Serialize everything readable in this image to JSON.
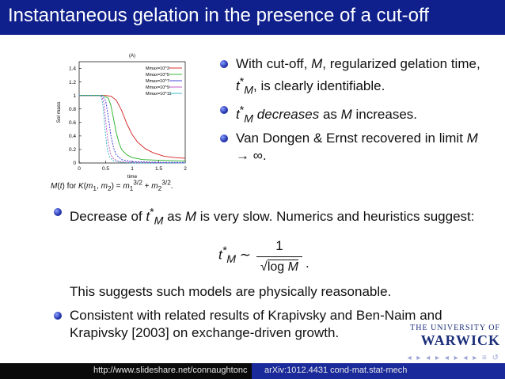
{
  "slide": {
    "title": "Instantaneous gelation in the presence of a cut-off"
  },
  "figure": {
    "panel_label": "(A)",
    "caption_prefix": "M(t) for K(m",
    "caption": "M(t) for K(m1, m2) = m1^(3/2) + m2^(3/2)."
  },
  "bullets_right": [
    "With cut-off, M, regularized gelation time, t*M, is clearly identifiable.",
    "t*M decreases as M increases.",
    "Van Dongen & Ernst recovered in limit M → ∞."
  ],
  "lower": {
    "bullet1": "Decrease of t*M as M is very slow. Numerics and heuristics suggest:",
    "formula_lhs": "t*M ~",
    "formula_num": "1",
    "formula_den": "√log M",
    "plain": "This suggests such models are physically reasonable.",
    "bullet2": "Consistent with related results of Krapivsky and Ben-Naim and Krapivsky [2003] on exchange-driven growth."
  },
  "logo": {
    "line1": "THE UNIVERSITY OF",
    "line2": "WARWICK"
  },
  "footer": {
    "left": "http://www.slideshare.net/connaughtonc",
    "right": "arXiv:1012.4431 cond-mat.stat-mech"
  },
  "chart_data": {
    "type": "line",
    "title": "(A)",
    "xlabel": "time",
    "ylabel": "Sol mass",
    "xlim": [
      0,
      2
    ],
    "ylim": [
      0,
      1.5
    ],
    "xticks": [
      "0",
      "0.5",
      "1",
      "1.5",
      "2"
    ],
    "yticks": [
      "0",
      "0.2",
      "0.4",
      "0.6",
      "0.8",
      "1",
      "1.2",
      "1.4"
    ],
    "legend_position": "top-right",
    "series": [
      {
        "name": "Mmax=10^3",
        "color": "#d62020",
        "x": [
          0,
          0.5,
          0.6,
          0.7,
          0.8,
          0.9,
          1.0,
          1.1,
          1.25,
          1.4,
          1.6,
          1.8,
          2.0
        ],
        "y": [
          1,
          1,
          0.99,
          0.93,
          0.78,
          0.58,
          0.42,
          0.31,
          0.21,
          0.15,
          0.1,
          0.08,
          0.07
        ]
      },
      {
        "name": "Mmax=10^5",
        "color": "#23b023",
        "x": [
          0,
          0.45,
          0.55,
          0.6,
          0.65,
          0.7,
          0.75,
          0.8,
          0.9,
          1.0,
          1.2,
          1.5,
          2.0
        ],
        "y": [
          1,
          1,
          0.96,
          0.85,
          0.65,
          0.45,
          0.3,
          0.2,
          0.12,
          0.08,
          0.05,
          0.04,
          0.03
        ]
      },
      {
        "name": "Mmax=10^7",
        "color": "#2f2fd8",
        "x": [
          0,
          0.43,
          0.5,
          0.55,
          0.6,
          0.65,
          0.7,
          0.8,
          1.0,
          1.5,
          2.0
        ],
        "y": [
          1,
          1,
          0.92,
          0.68,
          0.4,
          0.22,
          0.12,
          0.05,
          0.02,
          0.01,
          0.01
        ]
      },
      {
        "name": "Mmax=10^9",
        "color": "#c048c0",
        "x": [
          0,
          0.42,
          0.47,
          0.51,
          0.55,
          0.6,
          0.65,
          0.75,
          1.0,
          2.0
        ],
        "y": [
          1,
          1,
          0.88,
          0.55,
          0.28,
          0.12,
          0.06,
          0.02,
          0.01,
          0.0
        ]
      },
      {
        "name": "Mmax=10^11",
        "color": "#27b3c9",
        "x": [
          0,
          0.41,
          0.45,
          0.49,
          0.53,
          0.58,
          0.65,
          0.8,
          1.0,
          2.0
        ],
        "y": [
          1,
          1,
          0.85,
          0.48,
          0.2,
          0.08,
          0.03,
          0.01,
          0.0,
          0.0
        ]
      }
    ],
    "y0_line": 1.0
  }
}
